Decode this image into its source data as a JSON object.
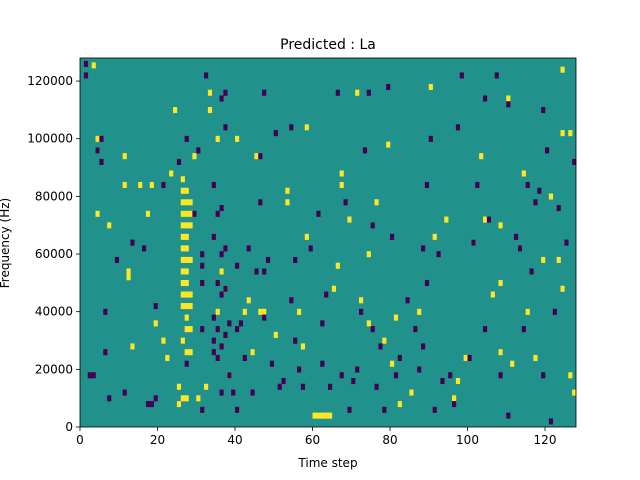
{
  "chart_data": {
    "type": "heatmap",
    "title": "Predicted : La",
    "xlabel": "Time step",
    "ylabel": "Frequency (Hz)",
    "xlim": [
      0,
      128
    ],
    "ylim": [
      0,
      128000
    ],
    "x_ticks": [
      0,
      20,
      40,
      60,
      80,
      100,
      120
    ],
    "y_ticks": [
      0,
      20000,
      40000,
      60000,
      80000,
      100000,
      120000
    ],
    "x_tick_labels": [
      "0",
      "20",
      "40",
      "60",
      "80",
      "100",
      "120"
    ],
    "y_tick_labels": [
      "0",
      "20000",
      "40000",
      "60000",
      "80000",
      "100000",
      "120000"
    ],
    "colormap": "viridis",
    "colors": {
      "background": "#21918c",
      "high": "#fde725",
      "low": "#440154"
    },
    "cells_high": [
      [
        3,
        125500
      ],
      [
        4,
        100000
      ],
      [
        4,
        96000
      ],
      [
        4,
        74000
      ],
      [
        7,
        70000
      ],
      [
        11,
        94000
      ],
      [
        11,
        84000
      ],
      [
        12,
        54000
      ],
      [
        12,
        52000
      ],
      [
        13,
        28000
      ],
      [
        15,
        84000
      ],
      [
        17,
        74000
      ],
      [
        18,
        84000
      ],
      [
        19,
        36000
      ],
      [
        21,
        30000
      ],
      [
        22,
        24000
      ],
      [
        23,
        88000
      ],
      [
        24,
        110000
      ],
      [
        25,
        14000
      ],
      [
        25,
        8000
      ],
      [
        26,
        10000
      ],
      [
        26,
        30000
      ],
      [
        26,
        42000
      ],
      [
        26,
        46000
      ],
      [
        26,
        50000
      ],
      [
        26,
        54000
      ],
      [
        26,
        58000
      ],
      [
        26,
        62000
      ],
      [
        26,
        66000
      ],
      [
        26,
        70000
      ],
      [
        26,
        74000
      ],
      [
        26,
        78000
      ],
      [
        26,
        82000
      ],
      [
        26,
        86000
      ],
      [
        27,
        10000
      ],
      [
        27,
        26000
      ],
      [
        27,
        34000
      ],
      [
        27,
        38000
      ],
      [
        27,
        42000
      ],
      [
        27,
        46000
      ],
      [
        27,
        50000
      ],
      [
        27,
        54000
      ],
      [
        27,
        58000
      ],
      [
        27,
        62000
      ],
      [
        27,
        66000
      ],
      [
        27,
        70000
      ],
      [
        27,
        74000
      ],
      [
        27,
        78000
      ],
      [
        27,
        82000
      ],
      [
        28,
        26000
      ],
      [
        28,
        34000
      ],
      [
        28,
        42000
      ],
      [
        28,
        46000
      ],
      [
        28,
        58000
      ],
      [
        28,
        70000
      ],
      [
        28,
        74000
      ],
      [
        28,
        78000
      ],
      [
        29,
        94000
      ],
      [
        30,
        10000
      ],
      [
        32,
        14000
      ],
      [
        33,
        116000
      ],
      [
        33,
        110000
      ],
      [
        35,
        100000
      ],
      [
        35,
        40000
      ],
      [
        36,
        54000
      ],
      [
        37,
        48000
      ],
      [
        38,
        18000
      ],
      [
        40,
        100000
      ],
      [
        42,
        40000
      ],
      [
        43,
        44000
      ],
      [
        44,
        26000
      ],
      [
        45,
        94000
      ],
      [
        46,
        40000
      ],
      [
        47,
        40000
      ],
      [
        50,
        32000
      ],
      [
        53,
        82000
      ],
      [
        53,
        78000
      ],
      [
        56,
        40000
      ],
      [
        57,
        28000
      ],
      [
        58,
        104000
      ],
      [
        58,
        66000
      ],
      [
        60,
        4000
      ],
      [
        61,
        4000
      ],
      [
        62,
        4000
      ],
      [
        63,
        4000
      ],
      [
        64,
        4000
      ],
      [
        65,
        48000
      ],
      [
        66,
        56000
      ],
      [
        67,
        88000
      ],
      [
        67,
        84000
      ],
      [
        69,
        72000
      ],
      [
        71,
        116000
      ],
      [
        72,
        44000
      ],
      [
        74,
        60000
      ],
      [
        74,
        36000
      ],
      [
        76,
        78000
      ],
      [
        78,
        30000
      ],
      [
        79,
        98000
      ],
      [
        80,
        22000
      ],
      [
        81,
        38000
      ],
      [
        82,
        8000
      ],
      [
        85,
        12000
      ],
      [
        87,
        40000
      ],
      [
        90,
        118000
      ],
      [
        91,
        66000
      ],
      [
        94,
        72000
      ],
      [
        96,
        10000
      ],
      [
        97,
        16000
      ],
      [
        99,
        24000
      ],
      [
        101,
        64000
      ],
      [
        103,
        94000
      ],
      [
        104,
        72000
      ],
      [
        106,
        46000
      ],
      [
        108,
        70000
      ],
      [
        108,
        50000
      ],
      [
        108,
        26000
      ],
      [
        110,
        114000
      ],
      [
        111,
        22000
      ],
      [
        113,
        62000
      ],
      [
        114,
        88000
      ],
      [
        115,
        40000
      ],
      [
        117,
        24000
      ],
      [
        119,
        58000
      ],
      [
        121,
        80000
      ],
      [
        123,
        58000
      ],
      [
        124,
        48000
      ],
      [
        124,
        102000
      ],
      [
        124,
        124000
      ],
      [
        126,
        102000
      ],
      [
        126,
        18000
      ],
      [
        127,
        12000
      ]
    ],
    "cells_low": [
      [
        1,
        126000
      ],
      [
        1,
        122000
      ],
      [
        2,
        18000
      ],
      [
        3,
        18000
      ],
      [
        4,
        96000
      ],
      [
        5,
        100000
      ],
      [
        5,
        92000
      ],
      [
        6,
        40000
      ],
      [
        6,
        26000
      ],
      [
        7,
        10000
      ],
      [
        9,
        58000
      ],
      [
        11,
        12000
      ],
      [
        13,
        64000
      ],
      [
        16,
        62000
      ],
      [
        17,
        8000
      ],
      [
        18,
        8000
      ],
      [
        19,
        42000
      ],
      [
        19,
        10000
      ],
      [
        21,
        84000
      ],
      [
        25,
        92000
      ],
      [
        27,
        100000
      ],
      [
        27,
        22000
      ],
      [
        29,
        74000
      ],
      [
        30,
        96000
      ],
      [
        31,
        60000
      ],
      [
        31,
        56000
      ],
      [
        31,
        50000
      ],
      [
        31,
        34000
      ],
      [
        31,
        6000
      ],
      [
        32,
        122000
      ],
      [
        34,
        84000
      ],
      [
        34,
        66000
      ],
      [
        34,
        38000
      ],
      [
        34,
        30000
      ],
      [
        34,
        26000
      ],
      [
        35,
        74000
      ],
      [
        35,
        50000
      ],
      [
        35,
        34000
      ],
      [
        35,
        24000
      ],
      [
        36,
        114000
      ],
      [
        36,
        76000
      ],
      [
        36,
        60000
      ],
      [
        36,
        46000
      ],
      [
        36,
        28000
      ],
      [
        36,
        12000
      ],
      [
        37,
        116000
      ],
      [
        37,
        104000
      ],
      [
        37,
        62000
      ],
      [
        37,
        48000
      ],
      [
        37,
        32000
      ],
      [
        38,
        36000
      ],
      [
        38,
        18000
      ],
      [
        39,
        12000
      ],
      [
        40,
        34000
      ],
      [
        40,
        56000
      ],
      [
        40,
        6000
      ],
      [
        41,
        36000
      ],
      [
        42,
        24000
      ],
      [
        43,
        62000
      ],
      [
        44,
        12000
      ],
      [
        45,
        54000
      ],
      [
        46,
        78000
      ],
      [
        46,
        94000
      ],
      [
        47,
        116000
      ],
      [
        47,
        38000
      ],
      [
        47,
        54000
      ],
      [
        48,
        58000
      ],
      [
        49,
        22000
      ],
      [
        50,
        102000
      ],
      [
        51,
        14000
      ],
      [
        52,
        16000
      ],
      [
        54,
        104000
      ],
      [
        54,
        44000
      ],
      [
        55,
        30000
      ],
      [
        55,
        58000
      ],
      [
        56,
        20000
      ],
      [
        57,
        14000
      ],
      [
        59,
        62000
      ],
      [
        61,
        74000
      ],
      [
        62,
        22000
      ],
      [
        62,
        36000
      ],
      [
        63,
        46000
      ],
      [
        64,
        14000
      ],
      [
        66,
        116000
      ],
      [
        67,
        18000
      ],
      [
        68,
        78000
      ],
      [
        69,
        6000
      ],
      [
        70,
        16000
      ],
      [
        71,
        20000
      ],
      [
        72,
        40000
      ],
      [
        73,
        96000
      ],
      [
        74,
        116000
      ],
      [
        75,
        70000
      ],
      [
        75,
        34000
      ],
      [
        76,
        14000
      ],
      [
        77,
        28000
      ],
      [
        78,
        6000
      ],
      [
        79,
        118000
      ],
      [
        80,
        66000
      ],
      [
        81,
        18000
      ],
      [
        82,
        24000
      ],
      [
        84,
        44000
      ],
      [
        86,
        34000
      ],
      [
        87,
        20000
      ],
      [
        88,
        62000
      ],
      [
        88,
        28000
      ],
      [
        89,
        84000
      ],
      [
        89,
        50000
      ],
      [
        90,
        100000
      ],
      [
        91,
        6000
      ],
      [
        92,
        60000
      ],
      [
        93,
        16000
      ],
      [
        95,
        18000
      ],
      [
        96,
        8000
      ],
      [
        97,
        104000
      ],
      [
        98,
        122000
      ],
      [
        100,
        24000
      ],
      [
        101,
        64000
      ],
      [
        102,
        84000
      ],
      [
        104,
        34000
      ],
      [
        104,
        114000
      ],
      [
        105,
        72000
      ],
      [
        107,
        122000
      ],
      [
        108,
        18000
      ],
      [
        110,
        112000
      ],
      [
        110,
        4000
      ],
      [
        112,
        66000
      ],
      [
        113,
        62000
      ],
      [
        114,
        34000
      ],
      [
        115,
        84000
      ],
      [
        116,
        54000
      ],
      [
        117,
        78000
      ],
      [
        118,
        82000
      ],
      [
        119,
        18000
      ],
      [
        119,
        110000
      ],
      [
        120,
        96000
      ],
      [
        121,
        2000
      ],
      [
        122,
        40000
      ],
      [
        123,
        76000
      ],
      [
        125,
        64000
      ],
      [
        127,
        92000
      ]
    ]
  }
}
